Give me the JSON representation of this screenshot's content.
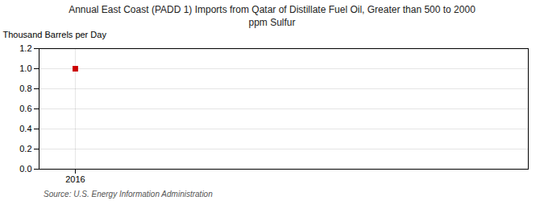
{
  "chart_data": {
    "type": "scatter",
    "title": "Annual East Coast (PADD 1) Imports from Qatar of Distillate Fuel Oil, Greater than 500 to 2000\nppm Sulfur",
    "ylabel": "Thousand Barrels per Day",
    "annotations": [
      "Source: U.S. Energy Information Administration"
    ],
    "x": [
      2016
    ],
    "values": [
      1.0
    ],
    "color": "#cc0000",
    "marker": "square",
    "xlim": [
      2015.4,
      2023.5
    ],
    "xticks": [
      2016
    ],
    "ylim": [
      0.0,
      1.2
    ],
    "yticks": [
      {
        "value": 0.0,
        "label": "0.0"
      },
      0.2,
      0.4,
      0.6,
      0.8,
      {
        "value": 1.0,
        "label": "1.0"
      },
      1.2
    ],
    "grid": true
  }
}
